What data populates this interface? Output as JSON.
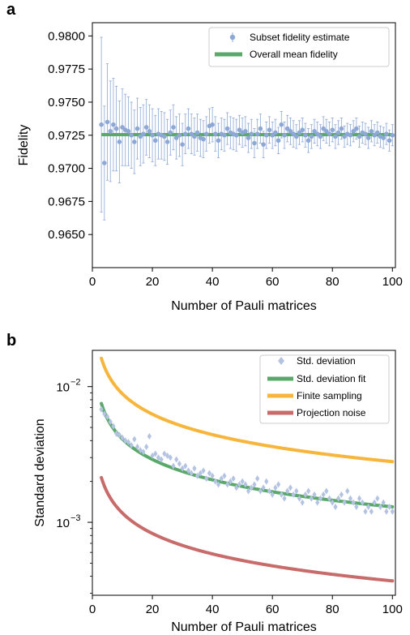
{
  "figure": {
    "panels": [
      "a",
      "b"
    ]
  },
  "colors": {
    "blue": "#8ea8d6",
    "green": "#5aa96a",
    "orange": "#f7b53b",
    "red": "#c86b6b"
  },
  "chart_data": [
    {
      "type": "scatter",
      "panel": "a",
      "xlabel": "Number of Pauli matrices",
      "ylabel": "Fidelity",
      "xlim": [
        0,
        101
      ],
      "ylim": [
        0.9625,
        0.981
      ],
      "xticks": [
        0,
        20,
        40,
        60,
        80,
        100
      ],
      "xtick_labels": [
        "0",
        "20",
        "40",
        "60",
        "80",
        "100"
      ],
      "yticks": [
        0.965,
        0.9675,
        0.97,
        0.9725,
        0.975,
        0.9775,
        0.98
      ],
      "ytick_labels": [
        "0.9650",
        "0.9675",
        "0.9700",
        "0.9725",
        "0.9750",
        "0.9775",
        "0.9800"
      ],
      "grid": false,
      "legend": "top-right",
      "series": [
        {
          "name": "Subset fidelity estimate",
          "kind": "errorbar",
          "x": [
            3,
            4,
            5,
            6,
            7,
            8,
            9,
            10,
            11,
            12,
            13,
            14,
            15,
            16,
            17,
            18,
            19,
            20,
            21,
            22,
            23,
            24,
            25,
            26,
            27,
            28,
            29,
            30,
            31,
            32,
            33,
            34,
            35,
            36,
            37,
            38,
            39,
            40,
            41,
            42,
            43,
            44,
            45,
            46,
            47,
            48,
            49,
            50,
            51,
            52,
            53,
            54,
            55,
            56,
            57,
            58,
            59,
            60,
            61,
            62,
            63,
            64,
            65,
            66,
            67,
            68,
            69,
            70,
            71,
            72,
            73,
            74,
            75,
            76,
            77,
            78,
            79,
            80,
            81,
            82,
            83,
            84,
            85,
            86,
            87,
            88,
            89,
            90,
            91,
            92,
            93,
            94,
            95,
            96,
            97,
            98,
            99,
            100
          ],
          "y": [
            0.9733,
            0.9704,
            0.9735,
            0.9728,
            0.9733,
            0.973,
            0.972,
            0.9731,
            0.9729,
            0.9728,
            0.9725,
            0.972,
            0.973,
            0.9724,
            0.9726,
            0.9731,
            0.9728,
            0.9725,
            0.9721,
            0.9726,
            0.9725,
            0.9724,
            0.972,
            0.9727,
            0.9731,
            0.9723,
            0.9725,
            0.9718,
            0.9726,
            0.973,
            0.9726,
            0.9724,
            0.9727,
            0.9723,
            0.9722,
            0.9726,
            0.9732,
            0.9733,
            0.9726,
            0.9721,
            0.9726,
            0.9725,
            0.973,
            0.9727,
            0.9726,
            0.9725,
            0.9729,
            0.9727,
            0.9728,
            0.9723,
            0.9726,
            0.9719,
            0.9726,
            0.973,
            0.9718,
            0.9725,
            0.9729,
            0.9725,
            0.9727,
            0.9721,
            0.9733,
            0.9725,
            0.973,
            0.9728,
            0.9726,
            0.9724,
            0.9727,
            0.9729,
            0.9725,
            0.9721,
            0.9724,
            0.9728,
            0.9726,
            0.9724,
            0.973,
            0.9728,
            0.9726,
            0.9729,
            0.9724,
            0.9727,
            0.973,
            0.9724,
            0.9726,
            0.9725,
            0.9728,
            0.973,
            0.9724,
            0.9727,
            0.9726,
            0.9723,
            0.9728,
            0.9725,
            0.9727,
            0.9724,
            0.9723,
            0.9726,
            0.9721,
            0.9725
          ],
          "yerr": [
            0.0066,
            0.0043,
            0.0044,
            0.0038,
            0.0035,
            0.0032,
            0.0031,
            0.0029,
            0.0027,
            0.0026,
            0.0025,
            0.0024,
            0.0023,
            0.0022,
            0.0022,
            0.0021,
            0.002,
            0.002,
            0.0019,
            0.0019,
            0.0018,
            0.0018,
            0.0017,
            0.0017,
            0.0017,
            0.0016,
            0.0016,
            0.0016,
            0.0015,
            0.0015,
            0.0015,
            0.0014,
            0.0014,
            0.0014,
            0.0014,
            0.0013,
            0.0013,
            0.0013,
            0.0013,
            0.0013,
            0.0012,
            0.0012,
            0.0012,
            0.0012,
            0.0012,
            0.0012,
            0.0011,
            0.0011,
            0.0011,
            0.0011,
            0.0011,
            0.0011,
            0.0011,
            0.0011,
            0.001,
            0.001,
            0.001,
            0.001,
            0.001,
            0.001,
            0.001,
            0.001,
            0.001,
            0.001,
            0.001,
            0.0009,
            0.0009,
            0.0009,
            0.0009,
            0.0009,
            0.0009,
            0.0009,
            0.0009,
            0.0009,
            0.0009,
            0.0009,
            0.0009,
            0.0009,
            0.0009,
            0.0009,
            0.0008,
            0.0008,
            0.0008,
            0.0008,
            0.0008,
            0.0008,
            0.0008,
            0.0008,
            0.0008,
            0.0008,
            0.0008,
            0.0008,
            0.0008,
            0.0008,
            0.0008,
            0.0008,
            0.0008,
            0.0008
          ]
        },
        {
          "name": "Overall mean fidelity",
          "kind": "hline",
          "y": 0.97255,
          "x_range": [
            3,
            100
          ]
        }
      ]
    },
    {
      "type": "scatter",
      "panel": "b",
      "xlabel": "Number of Pauli matrices",
      "ylabel": "Standard deviation",
      "xlim": [
        0,
        101
      ],
      "ylim": [
        0.00029,
        0.0185
      ],
      "yscale": "log",
      "xticks": [
        0,
        20,
        40,
        60,
        80,
        100
      ],
      "xtick_labels": [
        "0",
        "20",
        "40",
        "60",
        "80",
        "100"
      ],
      "yticks": [
        0.001,
        0.01
      ],
      "ytick_labels": [
        {
          "base": "10",
          "exp": "−3"
        },
        {
          "base": "10",
          "exp": "−2"
        }
      ],
      "grid": false,
      "legend": "top-right",
      "series": [
        {
          "name": "Std. deviation",
          "kind": "points",
          "x": [
            3,
            4,
            5,
            6,
            7,
            8,
            9,
            10,
            11,
            12,
            13,
            14,
            15,
            16,
            17,
            18,
            19,
            20,
            21,
            22,
            23,
            24,
            25,
            26,
            27,
            28,
            29,
            30,
            31,
            32,
            33,
            34,
            35,
            36,
            37,
            38,
            39,
            40,
            41,
            42,
            43,
            44,
            45,
            46,
            47,
            48,
            49,
            50,
            51,
            52,
            53,
            54,
            55,
            56,
            57,
            58,
            59,
            60,
            61,
            62,
            63,
            64,
            65,
            66,
            67,
            68,
            69,
            70,
            71,
            72,
            73,
            74,
            75,
            76,
            77,
            78,
            79,
            80,
            81,
            82,
            83,
            84,
            85,
            86,
            87,
            88,
            89,
            90,
            91,
            92,
            93,
            94,
            95,
            96,
            97,
            98,
            99,
            100
          ],
          "y": [
            0.0068,
            0.0063,
            0.006,
            0.0055,
            0.0051,
            0.0045,
            0.0044,
            0.0042,
            0.004,
            0.0039,
            0.0037,
            0.0041,
            0.0036,
            0.0034,
            0.0033,
            0.0036,
            0.0043,
            0.0031,
            0.0032,
            0.003,
            0.0029,
            0.0032,
            0.0031,
            0.003,
            0.0026,
            0.0029,
            0.0027,
            0.0025,
            0.0026,
            0.0024,
            0.0023,
            0.0025,
            0.0022,
            0.0023,
            0.0024,
            0.0021,
            0.0023,
            0.0022,
            0.002,
            0.0019,
            0.0021,
            0.0022,
            0.0019,
            0.002,
            0.0021,
            0.0018,
            0.0019,
            0.002,
            0.0019,
            0.0017,
            0.0018,
            0.0019,
            0.0021,
            0.0017,
            0.0018,
            0.002,
            0.0017,
            0.0016,
            0.0018,
            0.0019,
            0.0016,
            0.0015,
            0.0017,
            0.0018,
            0.0016,
            0.0017,
            0.0015,
            0.0014,
            0.0016,
            0.0017,
            0.0015,
            0.0016,
            0.0014,
            0.0015,
            0.0016,
            0.0017,
            0.0015,
            0.0014,
            0.0013,
            0.0015,
            0.0016,
            0.0014,
            0.0017,
            0.0015,
            0.0014,
            0.0013,
            0.0015,
            0.0014,
            0.0012,
            0.0013,
            0.0012,
            0.0014,
            0.0015,
            0.0013,
            0.0014,
            0.0012,
            0.0013,
            0.0012
          ]
        },
        {
          "name": "Std. deviation fit",
          "kind": "line",
          "a": 0.013,
          "note_formula": "a / sqrt(x)"
        },
        {
          "name": "Finite sampling",
          "kind": "line",
          "a": 0.028
        },
        {
          "name": "Projection noise",
          "kind": "line",
          "a": 0.0037
        }
      ]
    }
  ]
}
